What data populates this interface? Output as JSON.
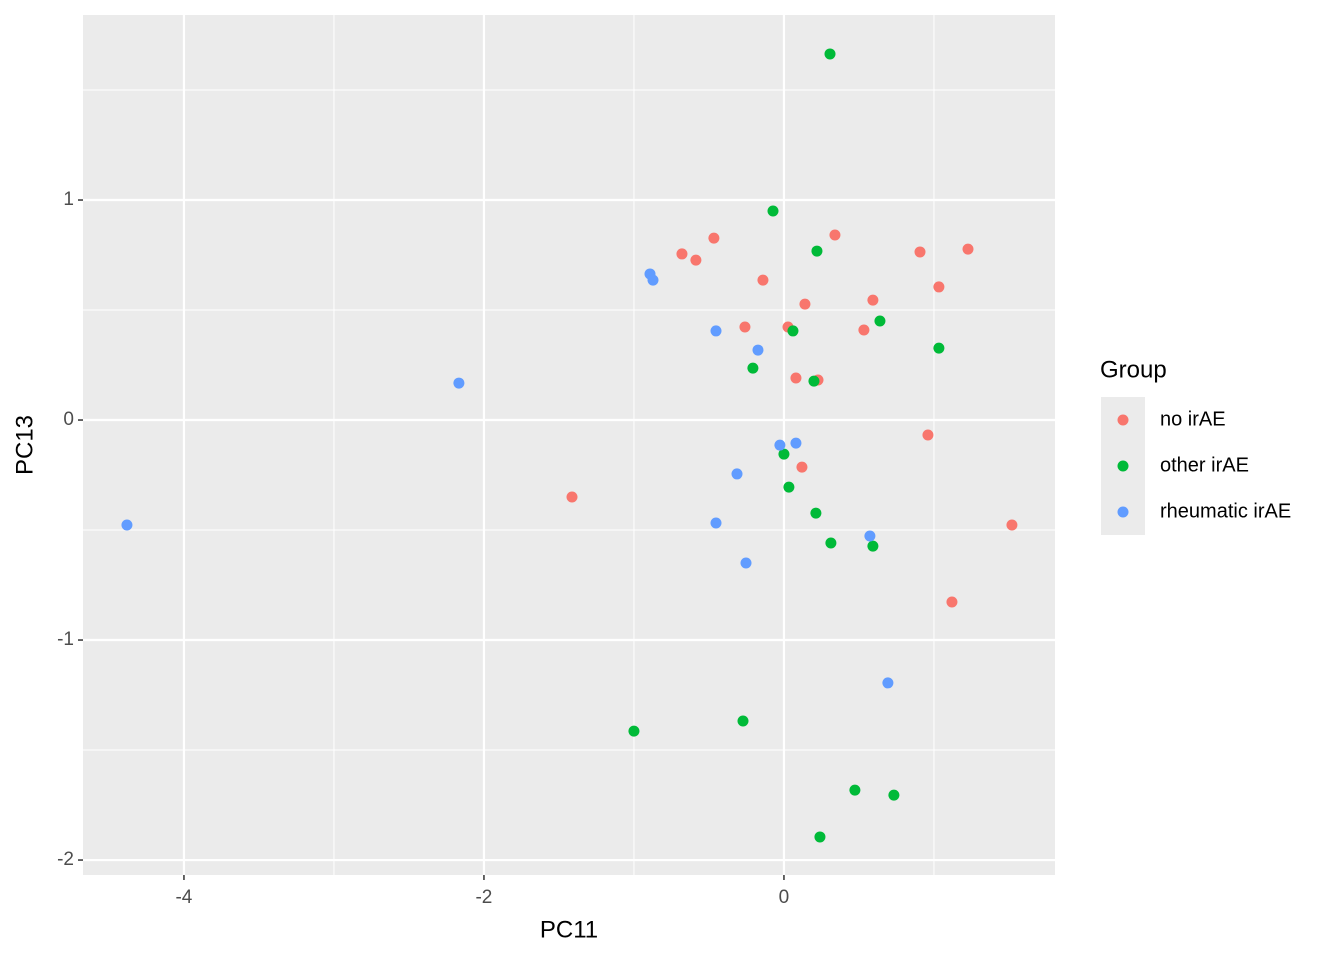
{
  "chart_data": {
    "type": "scatter",
    "x_label": "PC11",
    "y_label": "PC13",
    "legend_title": "Group",
    "legend_position": "right",
    "grid": true,
    "xlim": [
      -4.673,
      1.807
    ],
    "ylim": [
      -2.068,
      1.841
    ],
    "xticks": [
      -4,
      -2,
      0
    ],
    "yticks": [
      -2,
      -1,
      0,
      1
    ],
    "series": [
      {
        "name": "no irAE",
        "color": "#f8766d",
        "x": [
          -0.68,
          -0.587,
          -0.467,
          -0.14,
          -0.26,
          0.027,
          0.14,
          0.34,
          0.593,
          0.533,
          0.907,
          1.033,
          1.227,
          0.08,
          0.227,
          0.96,
          0.12,
          -1.413,
          1.12,
          1.52
        ],
        "y": [
          0.755,
          0.727,
          0.827,
          0.636,
          0.423,
          0.423,
          0.527,
          0.841,
          0.545,
          0.409,
          0.764,
          0.605,
          0.777,
          0.191,
          0.182,
          -0.068,
          -0.214,
          -0.35,
          -0.827,
          -0.477
        ]
      },
      {
        "name": "other irAE",
        "color": "#00ba38",
        "x": [
          0.307,
          -0.073,
          0.22,
          0.06,
          0.64,
          1.033,
          -0.207,
          0.2,
          0.0,
          0.033,
          0.213,
          0.313,
          0.593,
          -1.0,
          -0.273,
          0.473,
          0.733,
          0.24
        ],
        "y": [
          1.664,
          0.95,
          0.768,
          0.405,
          0.45,
          0.327,
          0.236,
          0.177,
          -0.155,
          -0.305,
          -0.423,
          -0.559,
          -0.573,
          -1.414,
          -1.368,
          -1.682,
          -1.705,
          -1.895
        ]
      },
      {
        "name": "rheumatic irAE",
        "color": "#619cff",
        "x": [
          -4.38,
          -2.167,
          -0.893,
          -0.873,
          -0.453,
          -0.173,
          -0.027,
          0.08,
          -0.313,
          -0.453,
          -0.253,
          0.573,
          0.693
        ],
        "y": [
          -0.477,
          0.168,
          0.664,
          0.636,
          0.405,
          0.318,
          -0.114,
          -0.105,
          -0.245,
          -0.468,
          -0.65,
          -0.527,
          -1.195
        ]
      }
    ]
  }
}
